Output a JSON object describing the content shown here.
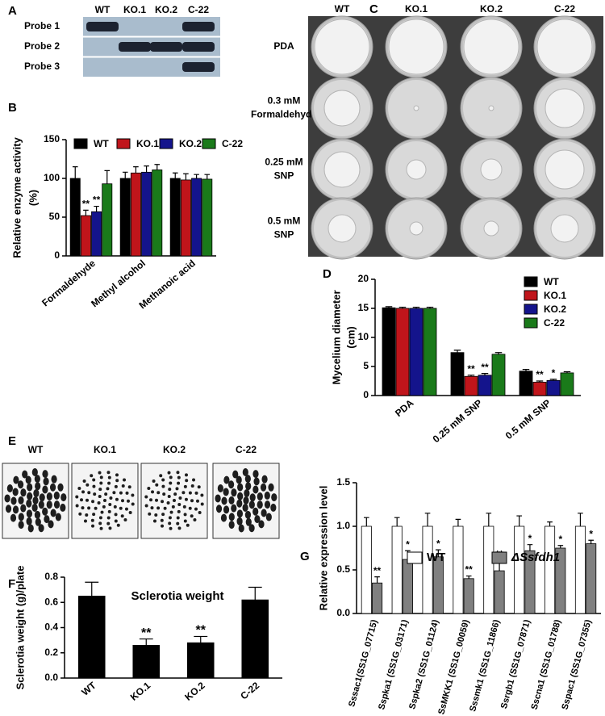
{
  "blot": {
    "panel": "A",
    "columns": [
      "WT",
      "KO.1",
      "KO.2",
      "C-22"
    ],
    "rows": [
      "Probe 1",
      "Probe 2",
      "Probe 3"
    ]
  },
  "plates": {
    "panel": "C",
    "columns": [
      "WT",
      "KO.1",
      "KO.2",
      "C-22"
    ],
    "rows": [
      [
        "PDA"
      ],
      [
        "0.3 mM",
        "Formaldehyde"
      ],
      [
        "0.25 mM",
        "SNP"
      ],
      [
        "0.5 mM",
        "SNP"
      ]
    ]
  },
  "sclerotia": {
    "panel": "E",
    "columns": [
      "WT",
      "KO.1",
      "KO.2",
      "C-22"
    ]
  },
  "chart_data": [
    {
      "panel": "B",
      "type": "bar",
      "y_label": [
        "Relative enzyme activity",
        "(%)"
      ],
      "categories": [
        "Formaldehyde",
        "Methyl alcohol",
        "Methanoic acid"
      ],
      "series": [
        {
          "name": "WT",
          "color": "#000000",
          "values": [
            100,
            100,
            100
          ],
          "errors": [
            15,
            8,
            7
          ]
        },
        {
          "name": "KO.1",
          "color": "#c0151b",
          "values": [
            52,
            107,
            98
          ],
          "errors": [
            7,
            8,
            8
          ],
          "significance": [
            "**",
            null,
            null
          ]
        },
        {
          "name": "KO.2",
          "color": "#14148c",
          "values": [
            57,
            108,
            100
          ],
          "errors": [
            7,
            8,
            5
          ],
          "significance": [
            "**",
            null,
            null
          ]
        },
        {
          "name": "C-22",
          "color": "#1a7a1a",
          "values": [
            93,
            111,
            99
          ],
          "errors": [
            17,
            7,
            6
          ]
        }
      ],
      "ylim": [
        0,
        150
      ],
      "yticks": [
        0,
        50,
        100,
        150
      ],
      "legend": "top"
    },
    {
      "panel": "D",
      "type": "bar",
      "y_label": [
        "Mycelium diameter",
        "(cm)"
      ],
      "categories": [
        "PDA",
        "0.25 mM SNP",
        "0.5 mM SNP"
      ],
      "series": [
        {
          "name": "WT",
          "color": "#000000",
          "values": [
            15.1,
            7.4,
            4.2
          ],
          "errors": [
            0.2,
            0.4,
            0.3
          ]
        },
        {
          "name": "KO.1",
          "color": "#c0151b",
          "values": [
            15,
            3.3,
            2.3
          ],
          "errors": [
            0.2,
            0.2,
            0.2
          ],
          "significance": [
            null,
            "**",
            "**"
          ]
        },
        {
          "name": "KO.2",
          "color": "#14148c",
          "values": [
            15,
            3.5,
            2.6
          ],
          "errors": [
            0.2,
            0.3,
            0.2
          ],
          "significance": [
            null,
            "**",
            "*"
          ]
        },
        {
          "name": "C-22",
          "color": "#1a7a1a",
          "values": [
            15,
            7.1,
            3.9
          ],
          "errors": [
            0.2,
            0.3,
            0.2
          ]
        }
      ],
      "ylim": [
        0,
        20
      ],
      "yticks": [
        0,
        5,
        10,
        15,
        20
      ],
      "legend": "upper right"
    },
    {
      "panel": "F",
      "type": "bar",
      "title": "Sclerotia weight",
      "y_label": [
        "Sclerotia weight (g)/plate"
      ],
      "categories": [
        "WT",
        "KO.1",
        "KO.2",
        "C-22"
      ],
      "color": "#000000",
      "values": [
        0.65,
        0.26,
        0.28,
        0.62
      ],
      "errors": [
        0.11,
        0.05,
        0.05,
        0.1
      ],
      "significance": [
        null,
        "**",
        "**",
        null
      ],
      "ylim": [
        0,
        0.8
      ],
      "yticks": [
        {
          "value": 0,
          "label": "0.0"
        },
        0.2,
        0.4,
        0.6,
        0.8
      ]
    },
    {
      "panel": "G",
      "type": "bar",
      "y_label": [
        "Relative expression level"
      ],
      "categories": [
        "Sssac1(SS1G_07715)",
        "Sspka1 (SS1G_03171)",
        "Sspka2 (SS1G_01124)",
        "SsMKK1 (SS1G_00059)",
        "Sssmk1 (SS1G_11866)",
        "Ssrgb1 (SS1G_07871)",
        "Sscna1 (SS1G_01788)",
        "Sspac1 (SS1G_07355)"
      ],
      "series": [
        {
          "name": "WT",
          "color": "#ffffff",
          "values": [
            1,
            1,
            1,
            1,
            1,
            1,
            1,
            1
          ],
          "errors": [
            0.1,
            0.1,
            0.15,
            0.08,
            0.15,
            0.12,
            0.05,
            0.15
          ]
        },
        {
          "name": "ΔSsfdh1",
          "color": "#808080",
          "values": [
            0.35,
            0.62,
            0.65,
            0.4,
            0.49,
            0.72,
            0.75,
            0.8
          ],
          "errors": [
            0.07,
            0.1,
            0.08,
            0.03,
            0.12,
            0.07,
            0.03,
            0.04
          ],
          "significance": [
            "**",
            "*",
            "*",
            "**",
            "**",
            "*",
            "*",
            "*"
          ]
        }
      ],
      "ylim": [
        0,
        1.5
      ],
      "yticks": [
        {
          "value": 0,
          "label": "0.0"
        },
        0.5,
        {
          "value": 1,
          "label": "1.0"
        },
        1.5
      ],
      "legend": "top"
    }
  ]
}
